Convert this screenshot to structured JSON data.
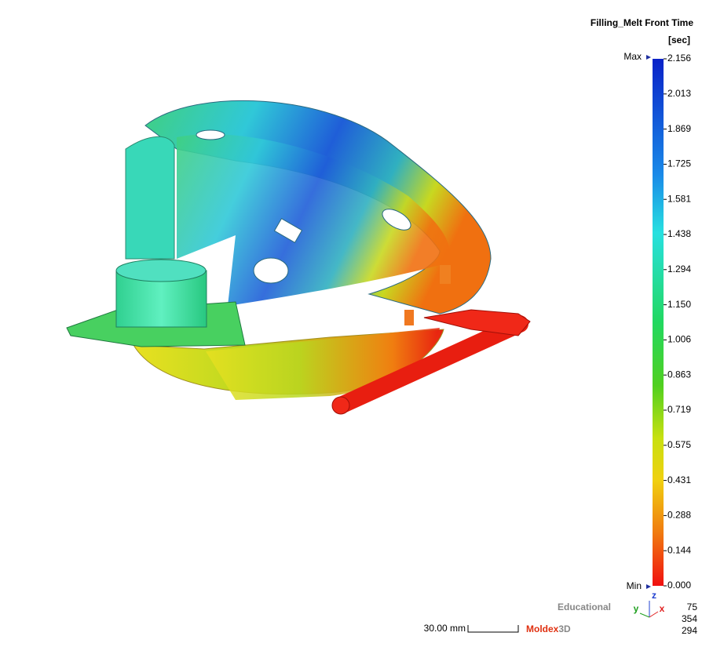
{
  "legend": {
    "title": "Filling_Melt Front Time",
    "unit": "[sec]",
    "max_label": "Max",
    "min_label": "Min",
    "ticks": [
      "2.156",
      "2.013",
      "1.869",
      "1.725",
      "1.581",
      "1.438",
      "1.294",
      "1.150",
      "1.006",
      "0.863",
      "0.719",
      "0.575",
      "0.431",
      "0.288",
      "0.144",
      "0.000"
    ]
  },
  "scale_bar": {
    "label": "30.00 mm"
  },
  "branding": {
    "edition": "Educational",
    "logo": "Moldex",
    "logo_suffix": "3D"
  },
  "axes_triad": {
    "labels": [
      "z",
      "y",
      "x"
    ]
  },
  "view_angles": [
    "75",
    "354",
    "294"
  ]
}
